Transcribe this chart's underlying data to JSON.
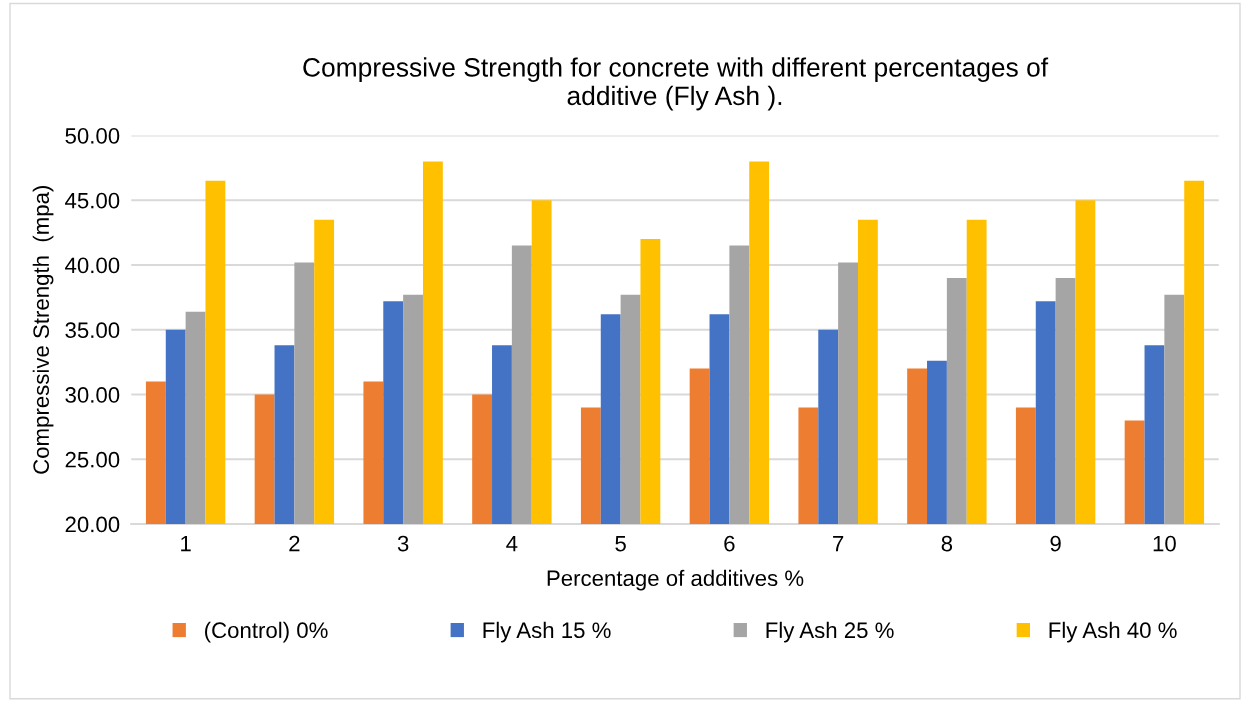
{
  "chart_data": {
    "type": "bar",
    "title": "Compressive Strength for concrete with different percentages of\nadditive (Fly Ash ).",
    "xlabel": "Percentage of additives %",
    "ylabel": "Compressive Strength  (mpa)",
    "categories": [
      "1",
      "2",
      "3",
      "4",
      "5",
      "6",
      "7",
      "8",
      "9",
      "10"
    ],
    "series": [
      {
        "name": "(Control) 0%",
        "color": "#ed7d31",
        "values": [
          31,
          30,
          31,
          30,
          29,
          32,
          29,
          32,
          29,
          28
        ]
      },
      {
        "name": "Fly Ash 15 %",
        "color": "#4472c4",
        "values": [
          35,
          33.8,
          37.2,
          33.8,
          36.2,
          36.2,
          35,
          32.6,
          37.2,
          33.8
        ]
      },
      {
        "name": "Fly Ash 25 %",
        "color": "#a5a5a5",
        "values": [
          36.4,
          40.2,
          37.7,
          41.5,
          37.7,
          41.5,
          40.2,
          39,
          39,
          37.7
        ]
      },
      {
        "name": "Fly Ash 40 %",
        "color": "#ffc000",
        "values": [
          46.5,
          43.5,
          48,
          45,
          42,
          48,
          43.5,
          43.5,
          45,
          46.5
        ]
      }
    ],
    "ylim": [
      20,
      50
    ],
    "yticks": [
      {
        "value": 20,
        "label": "20.00"
      },
      {
        "value": 25,
        "label": "25.00"
      },
      {
        "value": 30,
        "label": "30.00"
      },
      {
        "value": 35,
        "label": "35.00"
      },
      {
        "value": 40,
        "label": "40.00"
      },
      {
        "value": 45,
        "label": "45.00"
      },
      {
        "value": 50,
        "label": "50.00"
      }
    ],
    "grid": "y",
    "legend": "bottom"
  }
}
